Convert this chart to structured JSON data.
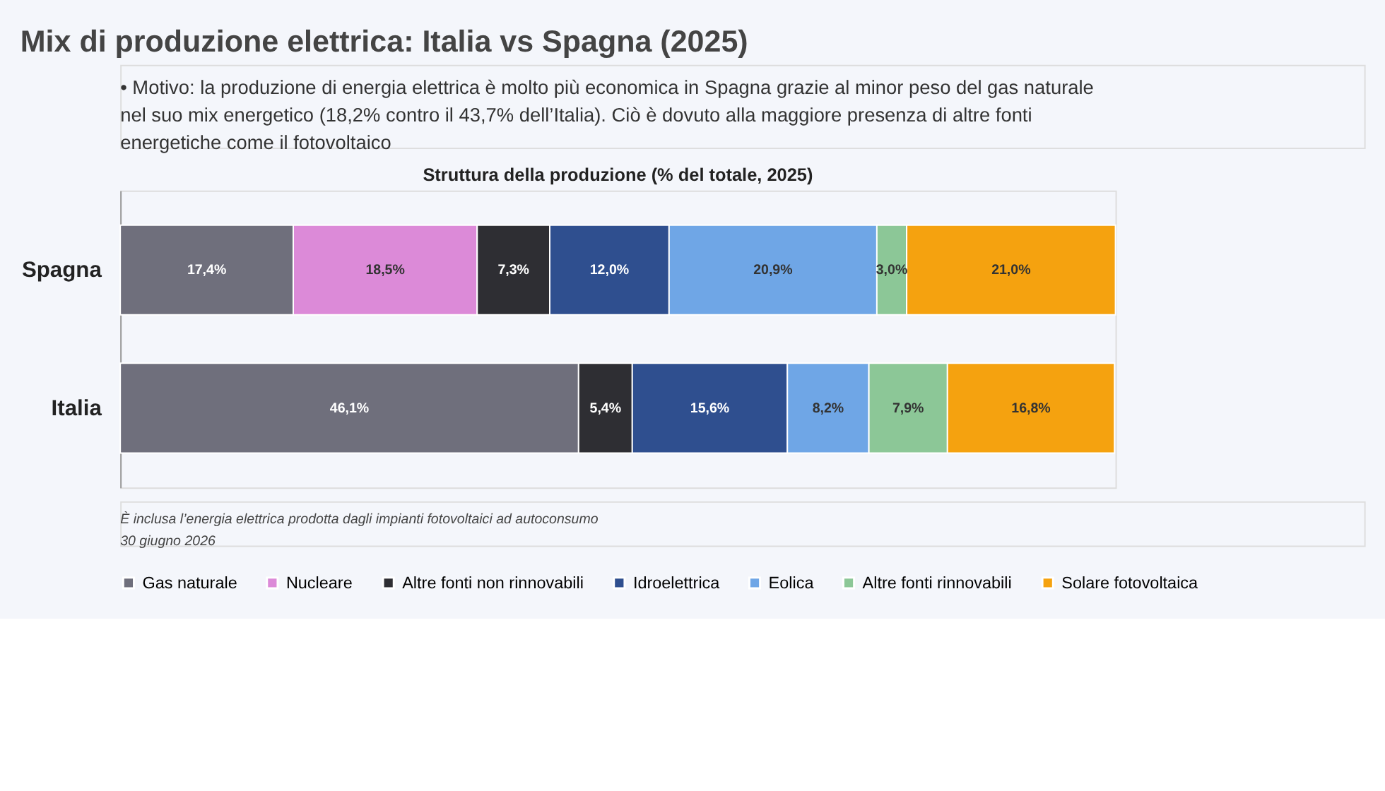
{
  "chart_data": {
    "type": "bar",
    "orientation": "horizontal",
    "stacked": true,
    "title": "Mix di produzione elettrica: Italia vs Spagna (2025)",
    "subtitle": "Struttura della produzione (% del totale, 2025)",
    "annotations": [
      "• Motivo: la produzione di energia elettrica è molto più economica in Spagna grazie al minor peso del gas naturale nel suo mix energetico (18,2% contro il 43,7% dell’Italia). Ciò è dovuto alla maggiore presenza di altre fonti energetiche come il fotovoltaico",
      "È inclusa l’energia elettrica prodotta dagli impianti fotovoltaici ad autoconsumo",
      "30 giugno 2026"
    ],
    "categories": [
      "Spagna",
      "Italia"
    ],
    "series": [
      {
        "name": "Gas naturale",
        "color": "#6f6f7c",
        "values": [
          17.4,
          46.1
        ],
        "value_labels": [
          "17,4%",
          "46,1%"
        ]
      },
      {
        "name": "Nucleare",
        "color": "#dc8ad8",
        "values": [
          18.5,
          null
        ],
        "value_labels": [
          "18,5%",
          null
        ]
      },
      {
        "name": "Altre fonti non rinnovabili",
        "color": "#2e2e33",
        "values": [
          7.3,
          5.4
        ],
        "value_labels": [
          "7,3%",
          "5,4%"
        ]
      },
      {
        "name": "Idroelettrica",
        "color": "#2f4f8f",
        "values": [
          12.0,
          15.6
        ],
        "value_labels": [
          "12,0%",
          "15,6%"
        ]
      },
      {
        "name": "Eolica",
        "color": "#6fa6e6",
        "values": [
          20.9,
          8.2
        ],
        "value_labels": [
          "20,9%",
          "8,2%"
        ]
      },
      {
        "name": "Altre fonti rinnovabili",
        "color": "#8cc797",
        "values": [
          3.0,
          7.9
        ],
        "value_labels": [
          "3,0%",
          "7,9%"
        ]
      },
      {
        "name": "Solare fotovoltaica",
        "color": "#f5a20f",
        "values": [
          21.0,
          16.8
        ],
        "value_labels": [
          "21,0%",
          "16,8%"
        ]
      }
    ],
    "legend": "bottom",
    "grid": false
  }
}
